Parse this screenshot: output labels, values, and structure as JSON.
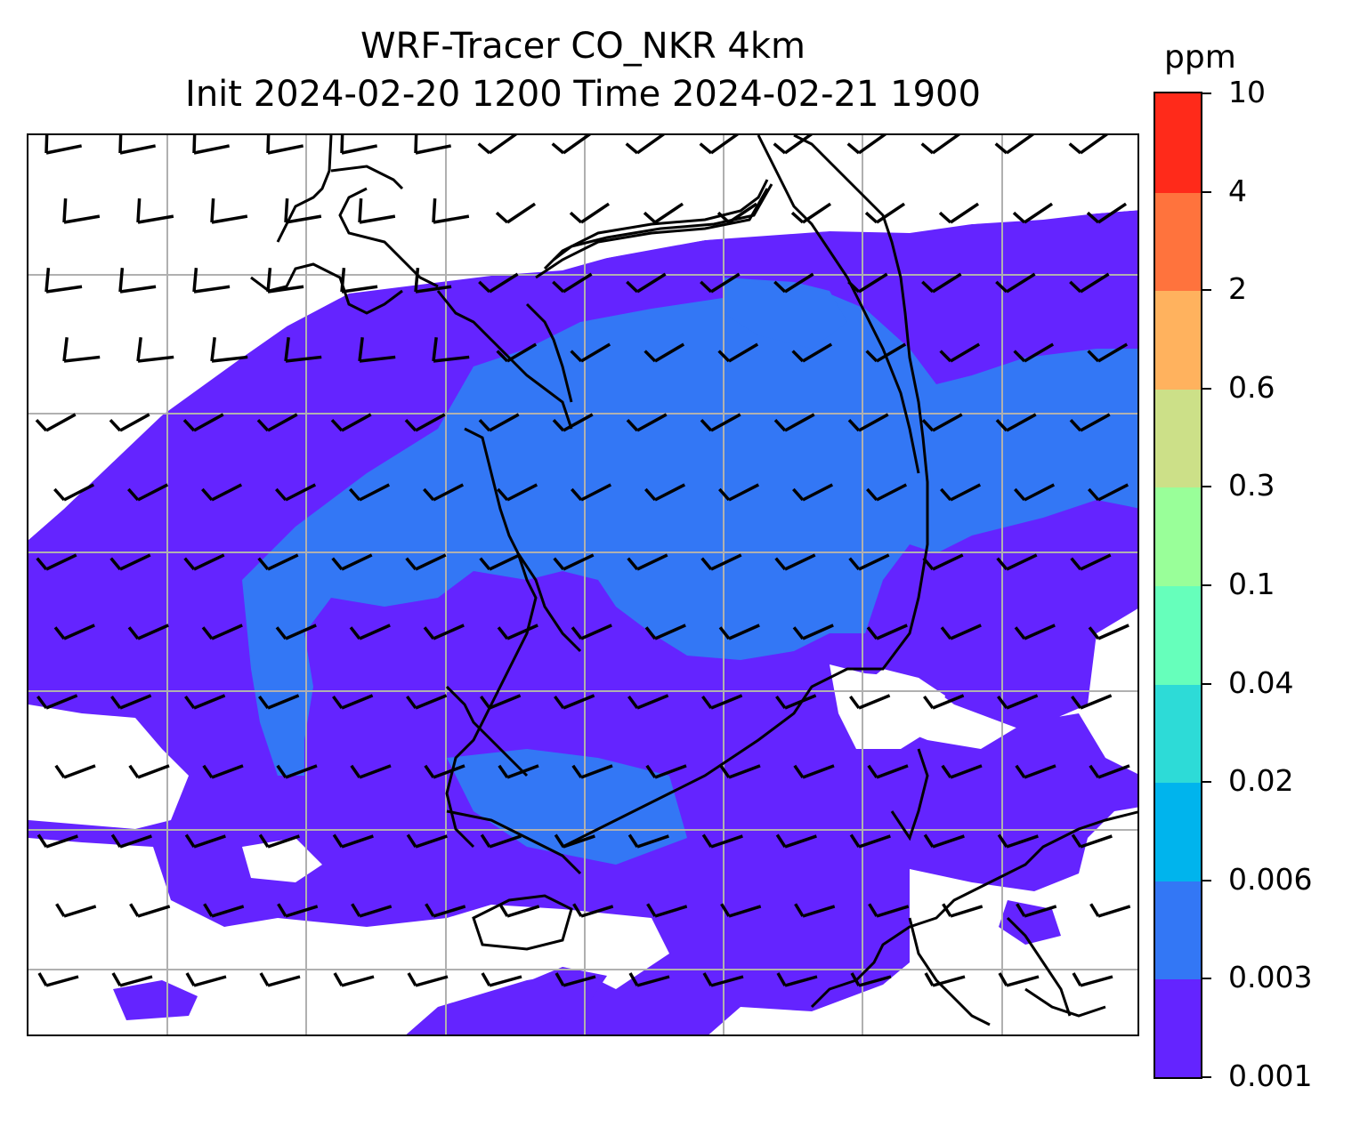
{
  "title": {
    "line1": "WRF-Tracer CO_NKR 4km",
    "line2": "Init 2024-02-20 1200 Time 2024-02-21 1900"
  },
  "colorbar": {
    "unit": "ppm",
    "levels": [
      "0.001",
      "0.003",
      "0.006",
      "0.02",
      "0.04",
      "0.1",
      "0.3",
      "0.6",
      "2",
      "4",
      "10"
    ],
    "colors": [
      "#6424ff",
      "#3377f5",
      "#00b4ed",
      "#2ddbd7",
      "#66ffbb",
      "#99ff99",
      "#cce088",
      "#ffb25e",
      "#ff733d",
      "#ff2a1a"
    ]
  },
  "map": {
    "field_colors": {
      "level_0001_0003": "#6424ff",
      "level_0003_0006": "#3377f5"
    },
    "gridlines": true,
    "wind_barbs": true,
    "coastlines": true
  }
}
